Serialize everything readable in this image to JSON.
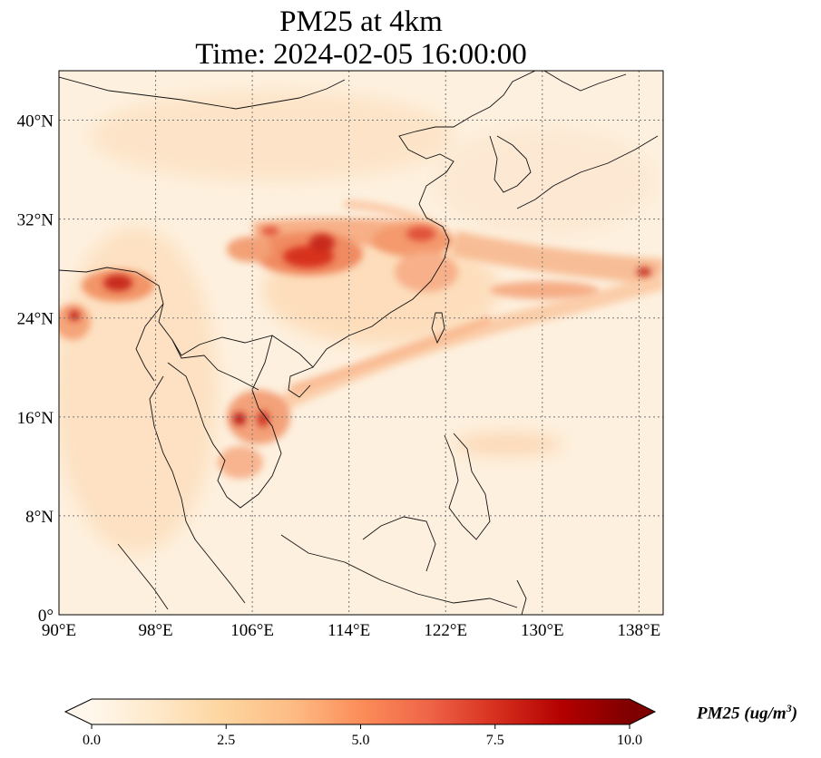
{
  "title_line1": "PM25 at 4km",
  "title_line2": "Time: 2024-02-05 16:00:00",
  "map": {
    "lon_range": [
      90,
      140
    ],
    "lat_range": [
      0,
      44
    ],
    "lon_ticks": [
      "90°E",
      "98°E",
      "106°E",
      "114°E",
      "122°E",
      "130°E",
      "138°E"
    ],
    "lat_ticks": [
      "0°",
      "8°N",
      "16°N",
      "24°N",
      "32°N",
      "40°N"
    ],
    "gridlines": true,
    "colormap": "OrRd"
  },
  "colorbar": {
    "ticks": [
      "0.0",
      "2.5",
      "5.0",
      "7.5",
      "10.0"
    ],
    "range": [
      0,
      10
    ],
    "extend": "both",
    "label_main": "PM25 (ug/m",
    "label_sup": "3",
    "label_end": ")",
    "colors": [
      "#fff7ec",
      "#fee8c8",
      "#fdd49e",
      "#fdbb84",
      "#fc8d59",
      "#ef6548",
      "#d7301f",
      "#b30000",
      "#7f0000"
    ]
  }
}
